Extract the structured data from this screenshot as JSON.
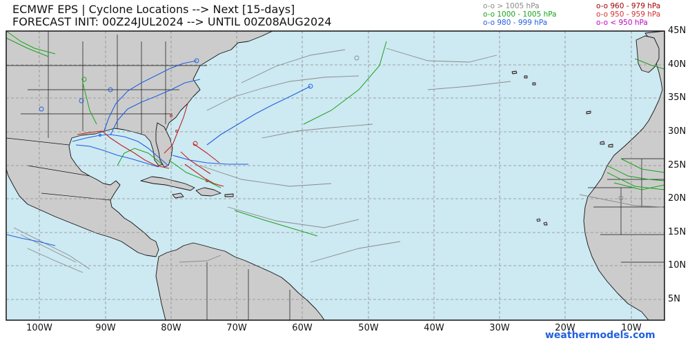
{
  "title_line1": "ECMWF EPS | Cyclone Locations --> Next [15-days]",
  "title_line2": "FORECAST INIT: 00Z24JUL2024 --> UNTIL 00Z08AUG2024",
  "legend": [
    {
      "text": "o-o > 1005 hPa",
      "color": "#8a8a8a"
    },
    {
      "text": "o-o 1000 - 1005 hPa",
      "color": "#19a319"
    },
    {
      "text": "o-o 980 - 999 hPa",
      "color": "#1f5fe0"
    },
    {
      "text": "o-o 960 - 979 hPa",
      "color": "#a00000"
    },
    {
      "text": "o-o 950 - 959 hPa",
      "color": "#d03030"
    },
    {
      "text": "o-o < 950 hPa",
      "color": "#c000c0"
    }
  ],
  "lat_labels": [
    "45N",
    "40N",
    "35N",
    "30N",
    "25N",
    "20N",
    "15N",
    "10N",
    "5N"
  ],
  "lon_labels": [
    "100W",
    "90W",
    "80W",
    "70W",
    "60W",
    "50W",
    "40W",
    "30W",
    "20W",
    "10W"
  ],
  "brand": "weathermodels.com",
  "colors": {
    "ocean": "#cde9f2",
    "land": "#cccccc",
    "grid": "#8a8a8a"
  }
}
